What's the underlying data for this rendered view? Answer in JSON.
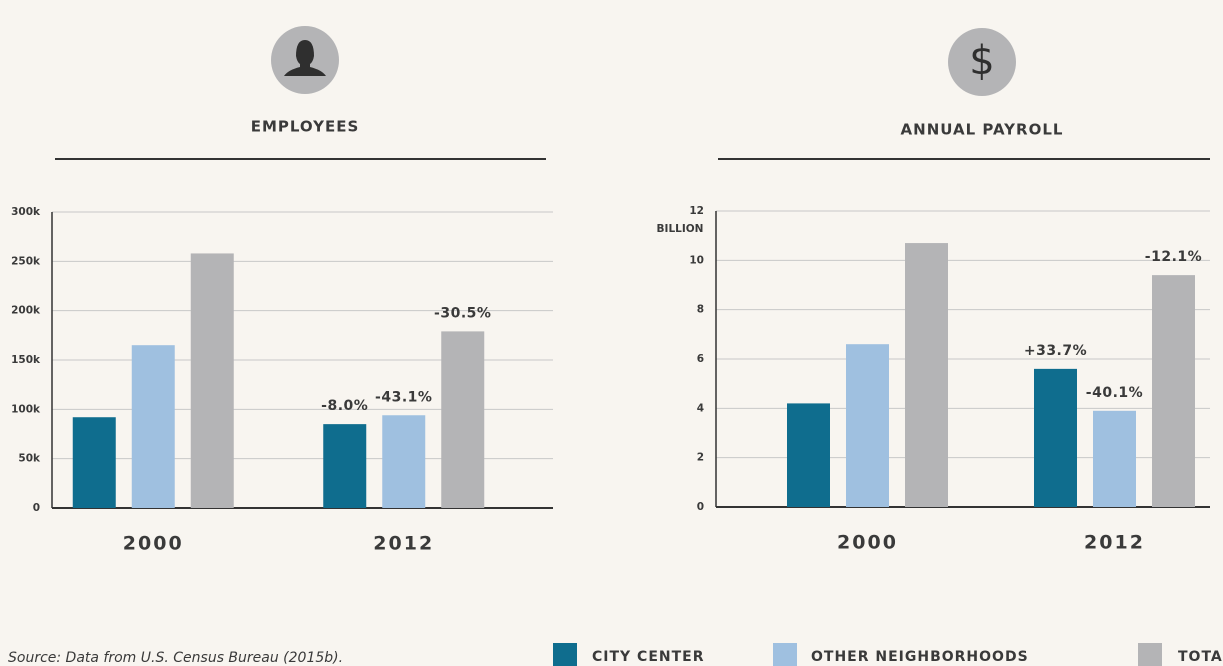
{
  "chart_data": [
    {
      "type": "bar",
      "title": "EMPLOYEES",
      "categories": [
        "2000",
        "2012"
      ],
      "series": [
        {
          "name": "CITY CENTER",
          "color": "#0f6d8e",
          "values": [
            92000,
            85000
          ],
          "change_labels": [
            null,
            "-8.0%"
          ]
        },
        {
          "name": "OTHER NEIGHBORHOODS",
          "color": "#9fc0e0",
          "values": [
            165000,
            94000
          ],
          "change_labels": [
            null,
            "-43.1%"
          ]
        },
        {
          "name": "TOTAL",
          "color": "#b4b4b6",
          "values": [
            258000,
            179000
          ],
          "change_labels": [
            null,
            "-30.5%"
          ]
        }
      ],
      "ylim": [
        0,
        300000
      ],
      "yticks": [
        0,
        {
          "value": 50000,
          "label": "50k"
        },
        {
          "value": 100000,
          "label": "100k"
        },
        {
          "value": 150000,
          "label": "150k"
        },
        {
          "value": 200000,
          "label": "200k"
        },
        {
          "value": 250000,
          "label": "250k"
        },
        {
          "value": 300000,
          "label": "300k"
        }
      ],
      "grid": true
    },
    {
      "type": "bar",
      "title": "ANNUAL PAYROLL",
      "icon": "$",
      "y_label": "BILLION",
      "categories": [
        "2000",
        "2012"
      ],
      "series": [
        {
          "color": "#0f6d8e",
          "values": [
            4.2,
            5.6
          ],
          "change_labels": [
            null,
            "+33.7%"
          ]
        },
        {
          "color": "#9fc0e0",
          "values": [
            6.6,
            3.9
          ],
          "change_labels": [
            null,
            "-40.1%"
          ]
        },
        {
          "color": "#b4b4b6",
          "values": [
            10.7,
            9.4
          ],
          "change_labels": [
            null,
            "-12.1%"
          ]
        }
      ],
      "ylim": [
        0,
        12
      ],
      "yticks": [
        0,
        2,
        4,
        6,
        8,
        10,
        12
      ],
      "grid": true
    }
  ],
  "source": "Source: Data from U.S. Census Bureau (2015b)."
}
